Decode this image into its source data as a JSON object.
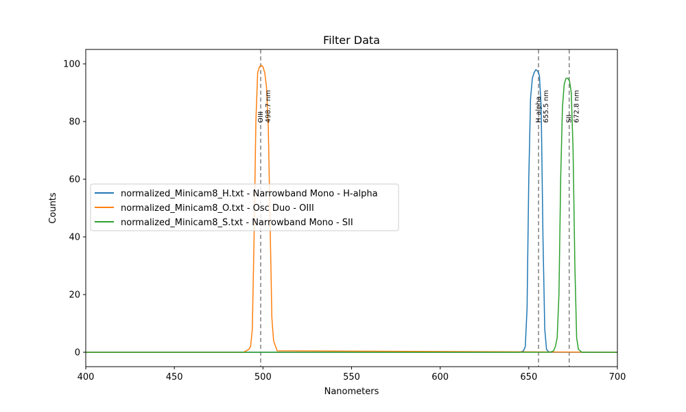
{
  "chart_data": {
    "type": "line",
    "title": "Filter Data",
    "xlabel": "Nanometers",
    "ylabel": "Counts",
    "xlim": [
      400,
      700
    ],
    "ylim": [
      -5,
      105
    ],
    "xticks": [
      400,
      450,
      500,
      550,
      600,
      650,
      700
    ],
    "yticks": [
      0,
      20,
      40,
      60,
      80,
      100
    ],
    "grid": false,
    "legend_position": "center left",
    "series": [
      {
        "name": "normalized_Minicam8_H.txt - Narrowband Mono - H-alpha",
        "color": "#1f77b4",
        "x": [
          400,
          645,
          647,
          648,
          649,
          650,
          651,
          652,
          653,
          654,
          655,
          656,
          657,
          658,
          659,
          660,
          661,
          662,
          700
        ],
        "y": [
          0,
          0,
          0.5,
          2,
          15,
          60,
          88,
          95,
          97,
          98,
          97.5,
          96,
          85,
          40,
          8,
          1,
          0.3,
          0,
          0
        ]
      },
      {
        "name": "normalized_Minicam8_O.txt - Osc Duo - OIII",
        "color": "#ff7f0e",
        "x": [
          400,
          489,
          492,
          493,
          494,
          495,
          496,
          497,
          498,
          499,
          500,
          501,
          502,
          503,
          504,
          505,
          506,
          508,
          700
        ],
        "y": [
          0,
          0,
          1,
          2,
          8,
          40,
          80,
          97,
          99,
          99.5,
          99,
          97,
          92,
          78,
          45,
          12,
          4,
          0.5,
          0
        ]
      },
      {
        "name": "normalized_Minicam8_S.txt - Narrowband Mono - SII",
        "color": "#2ca02c",
        "x": [
          400,
          662,
          664,
          665,
          666,
          667,
          668,
          669,
          670,
          671,
          672,
          673,
          674,
          675,
          676,
          677,
          678,
          680,
          700
        ],
        "y": [
          0,
          0,
          0.5,
          2,
          5,
          20,
          60,
          85,
          93,
          95,
          95,
          94,
          90,
          70,
          30,
          5,
          1,
          0,
          0
        ]
      }
    ],
    "vlines": [
      {
        "x": 498.7,
        "label": "OIII",
        "value_label": "498.7 nm"
      },
      {
        "x": 655.5,
        "label": "H-alpha",
        "value_label": "655.5 nm"
      },
      {
        "x": 672.8,
        "label": "SII",
        "value_label": "672.8 nm"
      }
    ]
  }
}
